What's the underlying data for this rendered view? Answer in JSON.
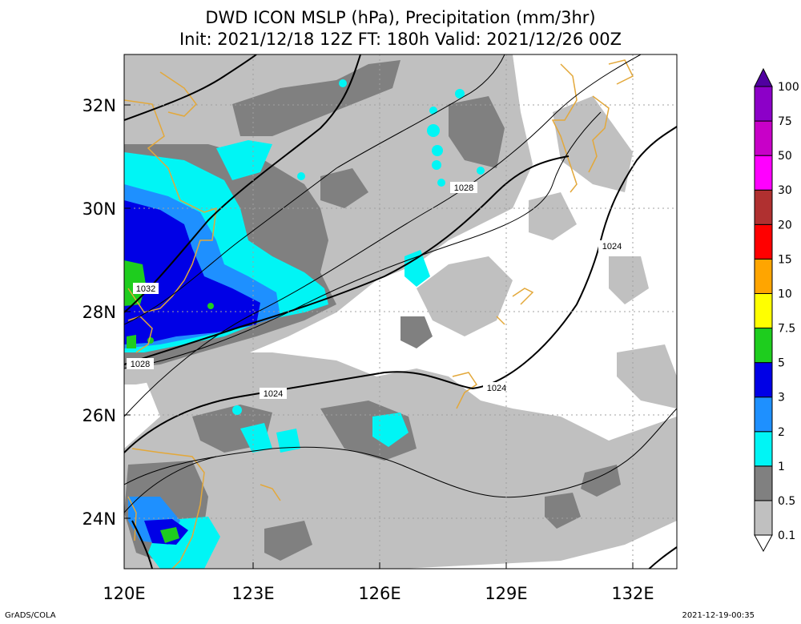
{
  "header": {
    "title_line1": "DWD ICON MSLP (hPa), Precipitation (mm/3hr)",
    "title_line2": "Init: 2021/12/18 12Z  FT: 180h  Valid: 2021/12/26 00Z"
  },
  "map": {
    "lon_range": [
      120,
      133
    ],
    "lat_range": [
      23,
      33
    ],
    "lon_ticks": [
      "120E",
      "123E",
      "126E",
      "129E",
      "132E"
    ],
    "lat_ticks": [
      "24N",
      "26N",
      "28N",
      "30N",
      "32N"
    ],
    "isobar_labels": [
      "1032",
      "1028",
      "1028",
      "1024",
      "1024",
      "1024"
    ],
    "colors": {
      "coast": "#e3a83a",
      "gray_light": "#c0c0c0",
      "gray_dark": "#808080",
      "cyan": "#00f5f5",
      "blue_2": "#1e90ff",
      "blue_3": "#0000e6",
      "green_5": "#1ecd1e"
    }
  },
  "colorbar": {
    "levels": [
      "0.1",
      "0.5",
      "1",
      "2",
      "3",
      "5",
      "7.5",
      "10",
      "15",
      "20",
      "30",
      "50",
      "75",
      "100"
    ],
    "colors": [
      "#ffffff",
      "#c0c0c0",
      "#808080",
      "#00f5f5",
      "#1e90ff",
      "#0000e6",
      "#1ecd1e",
      "#ffff00",
      "#ffa500",
      "#ff0000",
      "#b03030",
      "#ff00ff",
      "#c800c8",
      "#8c00c8",
      "#5000a0"
    ]
  },
  "footer": {
    "credit": "GrADS/COLA",
    "timestamp": "2021-12-19-00:35"
  }
}
